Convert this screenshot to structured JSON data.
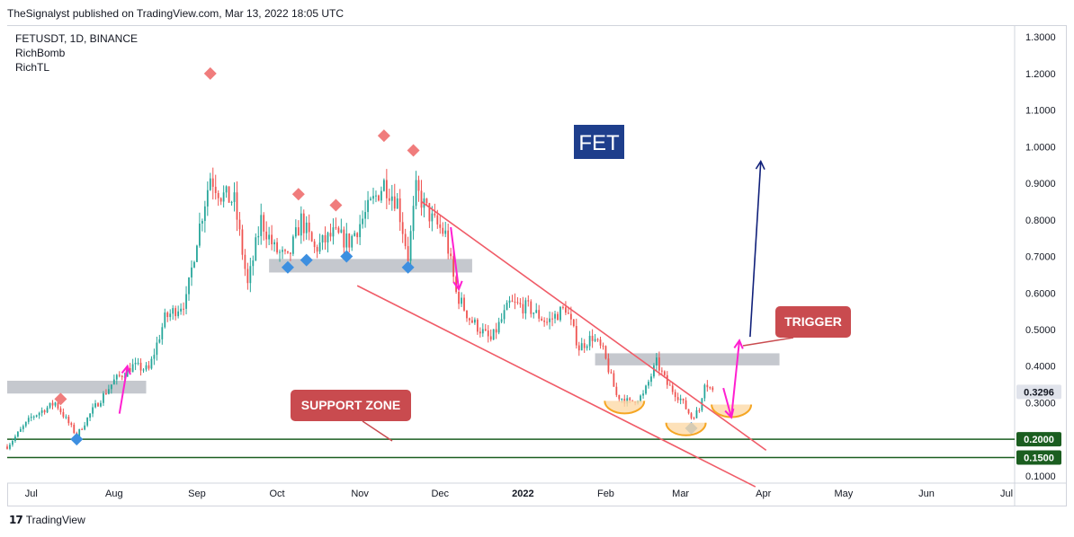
{
  "header": {
    "publish_line": "TheSignalyst published on TradingView.com, Mar 13, 2022 18:05 UTC"
  },
  "legend": {
    "symbol": "FETUSDT, 1D, BINANCE",
    "indicator_1": "RichBomb",
    "indicator_2": "RichTL"
  },
  "footer": {
    "brand": "TradingView"
  },
  "colors": {
    "up_candle": "#26a69a",
    "down_candle": "#ef5350",
    "trendline": "#f05c68",
    "zone_gray": "#b2b5be",
    "support_line": "#1b5e20",
    "magenta_arrow": "#ff1fd0",
    "projection_arrow": "#10207a",
    "fet_box": "#1e3e8c",
    "label_red": "#c94b4f",
    "bounce_orange": "#f5a623",
    "top_marker": "#f07c7c",
    "bottom_marker": "#3d8fe0"
  },
  "chart_data": {
    "type": "candlestick",
    "symbol": "FETUSDT",
    "timeframe": "1D",
    "exchange": "BINANCE",
    "x_range": [
      "2021-06-22",
      "2022-07-04"
    ],
    "ylim": [
      0.08,
      1.33
    ],
    "y_ticks": [
      "1.3000",
      "1.2000",
      "1.1000",
      "1.0000",
      "0.9000",
      "0.8000",
      "0.7000",
      "0.6000",
      "0.5000",
      "0.4000",
      "0.3000",
      "0.1000"
    ],
    "x_ticks": [
      {
        "date": "2021-07-01",
        "label": "Jul"
      },
      {
        "date": "2021-08-01",
        "label": "Aug"
      },
      {
        "date": "2021-09-01",
        "label": "Sep"
      },
      {
        "date": "2021-10-01",
        "label": "Oct"
      },
      {
        "date": "2021-11-01",
        "label": "Nov"
      },
      {
        "date": "2021-12-01",
        "label": "Dec"
      },
      {
        "date": "2022-01-01",
        "label": "2022"
      },
      {
        "date": "2022-02-01",
        "label": "Feb"
      },
      {
        "date": "2022-03-01",
        "label": "Mar"
      },
      {
        "date": "2022-04-01",
        "label": "Apr"
      },
      {
        "date": "2022-05-01",
        "label": "May"
      },
      {
        "date": "2022-06-01",
        "label": "Jun"
      },
      {
        "date": "2022-07-01",
        "label": "Jul"
      }
    ],
    "last_price": "0.3296",
    "price_labels": [
      "0.2000",
      "0.1500"
    ],
    "price_path": [
      {
        "date": "2021-06-22",
        "price": 0.18
      },
      {
        "date": "2021-07-01",
        "price": 0.26
      },
      {
        "date": "2021-07-10",
        "price": 0.3
      },
      {
        "date": "2021-07-18",
        "price": 0.21
      },
      {
        "date": "2021-07-24",
        "price": 0.28
      },
      {
        "date": "2021-08-01",
        "price": 0.36
      },
      {
        "date": "2021-08-08",
        "price": 0.4
      },
      {
        "date": "2021-08-14",
        "price": 0.39
      },
      {
        "date": "2021-08-20",
        "price": 0.53
      },
      {
        "date": "2021-08-28",
        "price": 0.58
      },
      {
        "date": "2021-09-01",
        "price": 0.75
      },
      {
        "date": "2021-09-06",
        "price": 0.92
      },
      {
        "date": "2021-09-10",
        "price": 0.87
      },
      {
        "date": "2021-09-15",
        "price": 0.85
      },
      {
        "date": "2021-09-20",
        "price": 0.62
      },
      {
        "date": "2021-09-25",
        "price": 0.8
      },
      {
        "date": "2021-09-30",
        "price": 0.72
      },
      {
        "date": "2021-10-05",
        "price": 0.69
      },
      {
        "date": "2021-10-10",
        "price": 0.8
      },
      {
        "date": "2021-10-15",
        "price": 0.72
      },
      {
        "date": "2021-10-22",
        "price": 0.76
      },
      {
        "date": "2021-10-28",
        "price": 0.74
      },
      {
        "date": "2021-11-05",
        "price": 0.84
      },
      {
        "date": "2021-11-10",
        "price": 0.9
      },
      {
        "date": "2021-11-15",
        "price": 0.85
      },
      {
        "date": "2021-11-19",
        "price": 0.7
      },
      {
        "date": "2021-11-22",
        "price": 0.88
      },
      {
        "date": "2021-11-28",
        "price": 0.8
      },
      {
        "date": "2021-12-03",
        "price": 0.76
      },
      {
        "date": "2021-12-07",
        "price": 0.6
      },
      {
        "date": "2021-12-12",
        "price": 0.53
      },
      {
        "date": "2021-12-20",
        "price": 0.47
      },
      {
        "date": "2021-12-27",
        "price": 0.57
      },
      {
        "date": "2022-01-03",
        "price": 0.56
      },
      {
        "date": "2022-01-10",
        "price": 0.52
      },
      {
        "date": "2022-01-17",
        "price": 0.56
      },
      {
        "date": "2022-01-22",
        "price": 0.45
      },
      {
        "date": "2022-01-27",
        "price": 0.48
      },
      {
        "date": "2022-01-31",
        "price": 0.44
      },
      {
        "date": "2022-02-05",
        "price": 0.32
      },
      {
        "date": "2022-02-10",
        "price": 0.3
      },
      {
        "date": "2022-02-15",
        "price": 0.32
      },
      {
        "date": "2022-02-20",
        "price": 0.41
      },
      {
        "date": "2022-02-24",
        "price": 0.35
      },
      {
        "date": "2022-03-01",
        "price": 0.31
      },
      {
        "date": "2022-03-05",
        "price": 0.26
      },
      {
        "date": "2022-03-08",
        "price": 0.28
      },
      {
        "date": "2022-03-10",
        "price": 0.36
      },
      {
        "date": "2022-03-13",
        "price": 0.33
      }
    ],
    "annotations": {
      "title_box": "FET",
      "support_label": "SUPPORT ZONE",
      "trigger_label": "TRIGGER",
      "support_lines": [
        0.2,
        0.15
      ],
      "zones": [
        {
          "start": "2021-06-22",
          "end": "2021-08-13",
          "low": 0.325,
          "high": 0.36
        },
        {
          "start": "2021-09-28",
          "end": "2021-12-13",
          "low": 0.656,
          "high": 0.693
        },
        {
          "start": "2022-01-28",
          "end": "2022-04-07",
          "low": 0.402,
          "high": 0.435
        }
      ],
      "channel_upper": [
        {
          "date": "2021-11-24",
          "price": 0.85
        },
        {
          "date": "2022-04-02",
          "price": 0.17
        }
      ],
      "channel_lower": [
        {
          "date": "2021-10-31",
          "price": 0.62
        },
        {
          "date": "2022-03-29",
          "price": 0.07
        }
      ],
      "projection_arrow": [
        {
          "date": "2022-03-27",
          "price": 0.48
        },
        {
          "date": "2022-03-31",
          "price": 0.96
        }
      ],
      "top_markers": [
        {
          "date": "2021-07-12",
          "price": 0.31
        },
        {
          "date": "2021-09-06",
          "price": 1.2
        },
        {
          "date": "2021-10-09",
          "price": 0.87
        },
        {
          "date": "2021-10-23",
          "price": 0.84
        },
        {
          "date": "2021-11-10",
          "price": 1.03
        },
        {
          "date": "2021-11-21",
          "price": 0.99
        }
      ],
      "bottom_markers": [
        {
          "date": "2021-07-18",
          "price": 0.2
        },
        {
          "date": "2021-10-05",
          "price": 0.67
        },
        {
          "date": "2021-10-12",
          "price": 0.69
        },
        {
          "date": "2021-10-27",
          "price": 0.7
        },
        {
          "date": "2021-11-19",
          "price": 0.67
        },
        {
          "date": "2022-03-05",
          "price": 0.23
        }
      ]
    }
  }
}
